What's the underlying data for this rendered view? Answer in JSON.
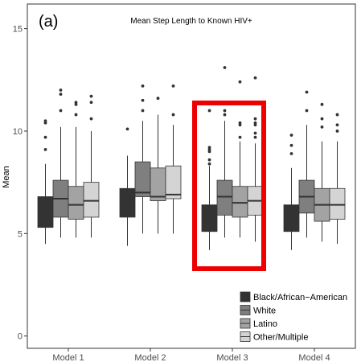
{
  "chart_data": {
    "type": "box",
    "panel_tag": "(a)",
    "title": "Mean Step Length to Known HIV+",
    "xlabel": "",
    "ylabel": "Mean",
    "ylim": [
      -0.6,
      16.2
    ],
    "yticks": [
      0,
      5,
      10,
      15
    ],
    "grid": false,
    "legend_position": "bottom-right",
    "categories": [
      "Model 1",
      "Model 2",
      "Model 3",
      "Model 4"
    ],
    "series": [
      {
        "name": "Black/African−American",
        "color": "#333333",
        "boxes": [
          {
            "whisker_low": 4.5,
            "q1": 5.3,
            "median": 6.1,
            "q3": 6.8,
            "whisker_high": 8.4,
            "outliers": [
              9.1,
              9.7,
              10.4,
              10.5
            ]
          },
          {
            "whisker_low": 4.4,
            "q1": 5.8,
            "median": 6.6,
            "q3": 7.2,
            "whisker_high": 8.8,
            "outliers": [
              10.1
            ]
          },
          {
            "whisker_low": 4.2,
            "q1": 5.1,
            "median": 5.8,
            "q3": 6.4,
            "whisker_high": 8.3,
            "outliers": [
              8.4,
              8.6,
              9.0,
              9.1,
              9.2,
              11.0
            ]
          },
          {
            "whisker_low": 4.2,
            "q1": 5.1,
            "median": 5.8,
            "q3": 6.4,
            "whisker_high": 8.2,
            "outliers": [
              8.9,
              9.3,
              9.8
            ]
          }
        ]
      },
      {
        "name": "White",
        "color": "#7f7f7f",
        "boxes": [
          {
            "whisker_low": 4.8,
            "q1": 5.8,
            "median": 6.7,
            "q3": 7.6,
            "whisker_high": 10.2,
            "outliers": [
              11.0,
              11.8,
              12.0
            ]
          },
          {
            "whisker_low": 5.0,
            "q1": 6.8,
            "median": 7.0,
            "q3": 8.5,
            "whisker_high": 10.5,
            "outliers": [
              11.0,
              11.5,
              12.2
            ]
          },
          {
            "whisker_low": 4.8,
            "q1": 5.9,
            "median": 6.8,
            "q3": 7.6,
            "whisker_high": 10.5,
            "outliers": [
              10.8,
              11.0,
              13.1
            ]
          },
          {
            "whisker_low": 4.8,
            "q1": 6.0,
            "median": 6.8,
            "q3": 7.6,
            "whisker_high": 10.3,
            "outliers": [
              11.0,
              11.9
            ]
          }
        ]
      },
      {
        "name": "Latino",
        "color": "#a3a3a3",
        "boxes": [
          {
            "whisker_low": 4.8,
            "q1": 5.7,
            "median": 6.4,
            "q3": 7.3,
            "whisker_high": 10.2,
            "outliers": [
              10.8,
              11.3,
              11.4
            ]
          },
          {
            "whisker_low": 5.0,
            "q1": 6.6,
            "median": 6.8,
            "q3": 8.2,
            "whisker_high": 10.8,
            "outliers": [
              11.6
            ]
          },
          {
            "whisker_low": 4.8,
            "q1": 5.8,
            "median": 6.5,
            "q3": 7.3,
            "whisker_high": 9.5,
            "outliers": [
              9.7,
              10.3,
              10.4,
              12.4
            ]
          },
          {
            "whisker_low": 4.6,
            "q1": 5.6,
            "median": 6.4,
            "q3": 7.2,
            "whisker_high": 9.5,
            "outliers": [
              10.2,
              10.6,
              11.3
            ]
          }
        ]
      },
      {
        "name": "Other/Multiple",
        "color": "#d4d4d4",
        "boxes": [
          {
            "whisker_low": 4.8,
            "q1": 5.8,
            "median": 6.6,
            "q3": 7.5,
            "whisker_high": 10.0,
            "outliers": [
              10.6,
              11.4,
              11.7
            ]
          },
          {
            "whisker_low": 5.0,
            "q1": 6.7,
            "median": 6.9,
            "q3": 8.3,
            "whisker_high": 10.3,
            "outliers": [
              10.8,
              12.2
            ]
          },
          {
            "whisker_low": 4.6,
            "q1": 5.9,
            "median": 6.6,
            "q3": 7.3,
            "whisker_high": 9.4,
            "outliers": [
              9.7,
              9.9,
              10.3,
              10.4,
              10.6,
              12.6
            ]
          },
          {
            "whisker_low": 4.5,
            "q1": 5.7,
            "median": 6.4,
            "q3": 7.2,
            "whisker_high": 9.5,
            "outliers": [
              10.0,
              10.3,
              10.8
            ]
          }
        ]
      }
    ],
    "highlight": {
      "category": "Model 3",
      "color": "#ee0000"
    }
  }
}
